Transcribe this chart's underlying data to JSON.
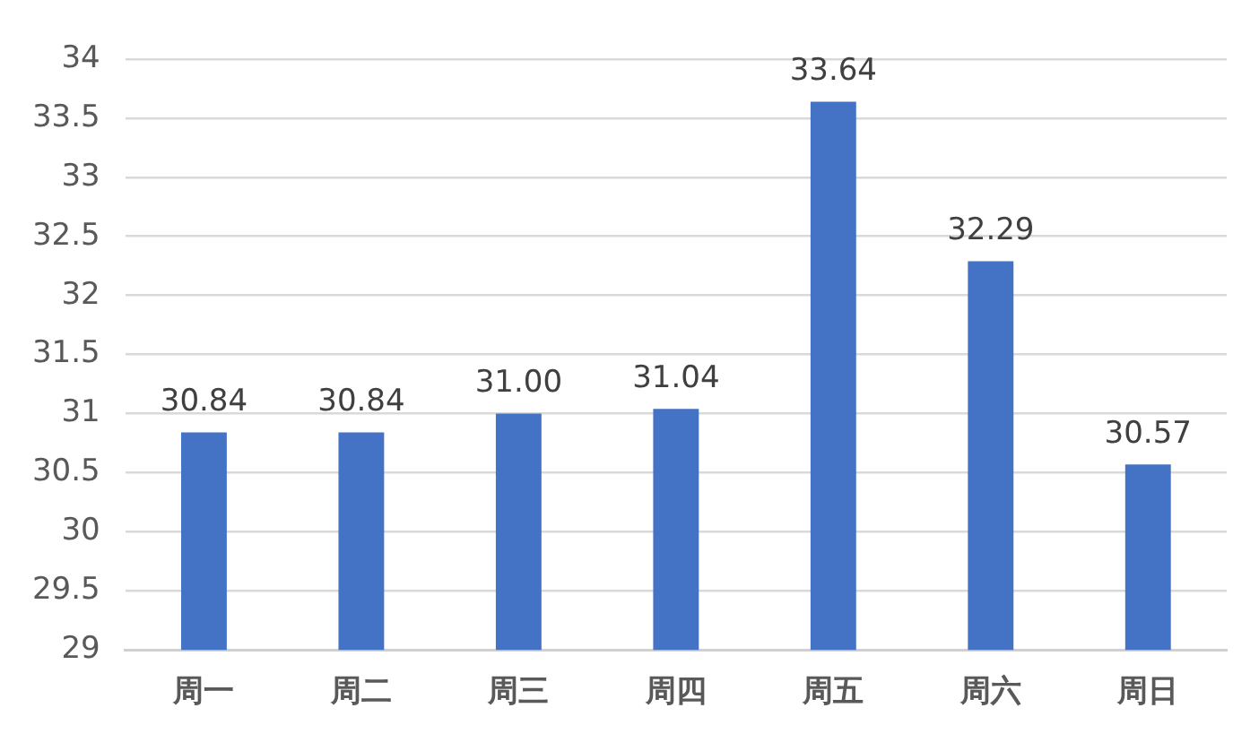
{
  "chart_data": {
    "type": "bar",
    "categories": [
      "周一",
      "周二",
      "周三",
      "周四",
      "周五",
      "周六",
      "周日"
    ],
    "values": [
      30.84,
      30.84,
      31.0,
      31.04,
      33.64,
      32.29,
      30.57
    ],
    "value_labels": [
      "30.84",
      "30.84",
      "31.00",
      "31.04",
      "33.64",
      "32.29",
      "30.57"
    ],
    "color": "#4472c4",
    "ylim": [
      29,
      34
    ],
    "yticks": [
      29,
      29.5,
      30,
      30.5,
      31,
      31.5,
      32,
      32.5,
      33,
      33.5,
      34
    ],
    "grid": "y"
  }
}
